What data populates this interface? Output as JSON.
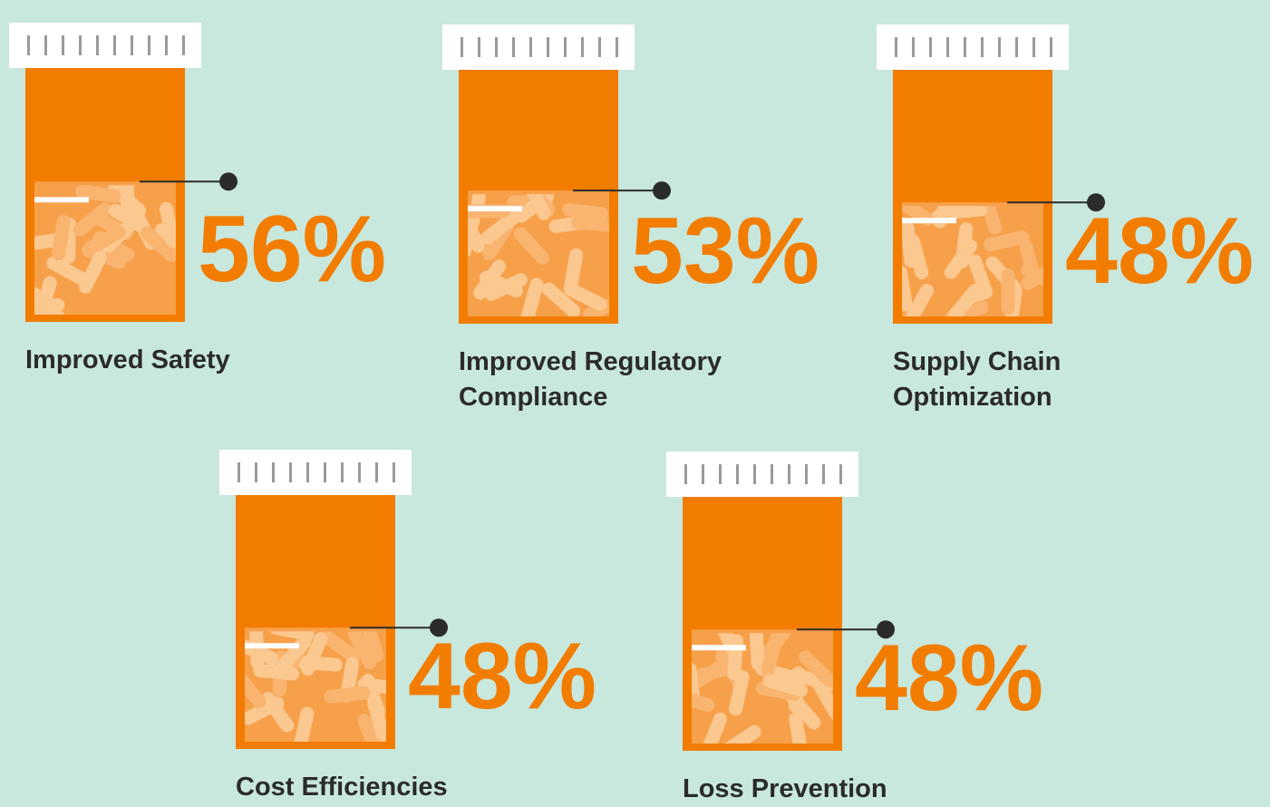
{
  "chart_data": {
    "type": "pictograph",
    "categories": [
      "Improved Safety",
      "Improved Regulatory Compliance",
      "Supply Chain Optimization",
      "Cost Efficiencies",
      "Loss Prevention"
    ],
    "values": [
      56,
      53,
      48,
      48,
      48
    ],
    "value_labels": [
      "56%",
      "53%",
      "48%",
      "48%",
      "48%"
    ],
    "ylim": [
      0,
      100
    ],
    "color": "#f27c00"
  }
}
